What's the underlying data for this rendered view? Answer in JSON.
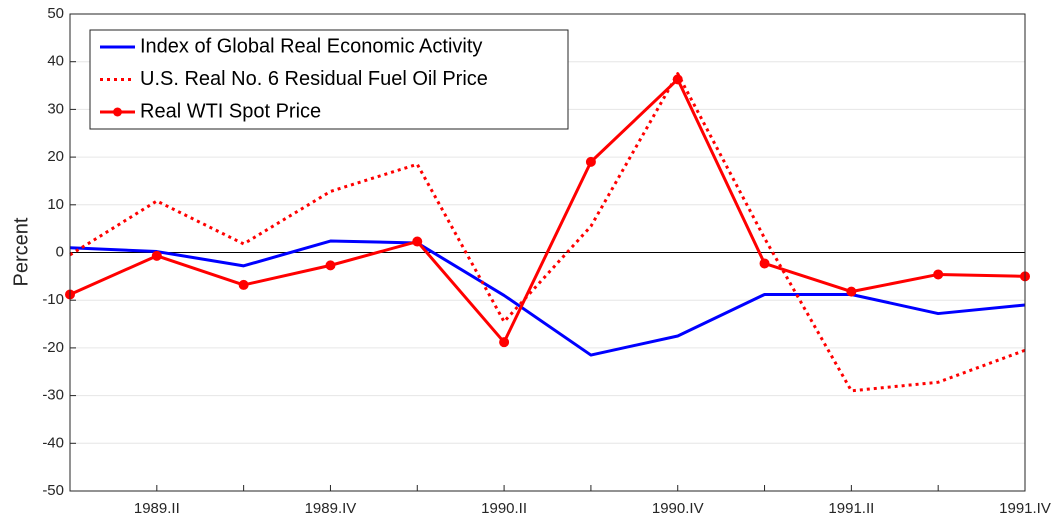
{
  "chart_data": {
    "type": "line",
    "ylabel": "Percent",
    "categories": [
      null,
      "1989.II",
      null,
      "1989.IV",
      null,
      "1990.II",
      null,
      "1990.IV",
      null,
      "1991.II",
      null,
      "1991.IV"
    ],
    "series": [
      {
        "name": "Index of Global Real Economic Activity",
        "color": "#0000ff",
        "dash": "solid",
        "marker": "none",
        "values": [
          1.0,
          0.2,
          -2.8,
          2.4,
          2.0,
          -9.0,
          -21.5,
          -17.5,
          -8.8,
          -8.8,
          -12.8,
          -11.0
        ]
      },
      {
        "name": "U.S. Real No. 6 Residual Fuel Oil Price",
        "color": "#ff0000",
        "dash": "dotted",
        "marker": "none",
        "values": [
          -0.5,
          10.8,
          1.8,
          12.8,
          18.5,
          -14.5,
          5.5,
          37.5,
          3.0,
          -29.0,
          -27.2,
          -20.5
        ]
      },
      {
        "name": "Real WTI Spot Price",
        "color": "#ff0000",
        "dash": "solid",
        "marker": "circle",
        "values": [
          -8.8,
          -0.7,
          -6.8,
          -2.7,
          2.3,
          -18.8,
          19.0,
          36.3,
          -2.3,
          -8.2,
          -4.6,
          -5.0
        ]
      }
    ],
    "ylim": [
      -50,
      50
    ],
    "yticks": [
      -50,
      -40,
      -30,
      -20,
      -10,
      0,
      10,
      20,
      30,
      40,
      50
    ],
    "grid": true,
    "zero_line": true,
    "legend": "upper-left"
  }
}
